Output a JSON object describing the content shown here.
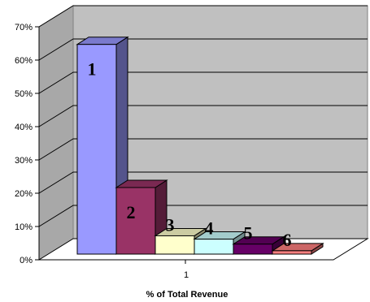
{
  "chart_data": {
    "type": "bar",
    "categories": [
      "1"
    ],
    "series": [
      {
        "label": "1",
        "values": [
          63
        ],
        "color": "#9999ff"
      },
      {
        "label": "2",
        "values": [
          20
        ],
        "color": "#993366"
      },
      {
        "label": "3",
        "values": [
          5.5
        ],
        "color": "#ffffcc"
      },
      {
        "label": "4",
        "values": [
          4.5
        ],
        "color": "#ccffff"
      },
      {
        "label": "5",
        "values": [
          3
        ],
        "color": "#660066"
      },
      {
        "label": "6",
        "values": [
          1
        ],
        "color": "#ff8080"
      }
    ],
    "title": "",
    "xlabel": "% of Total Revenue",
    "ylabel": "",
    "ylim": [
      0,
      70
    ],
    "yticks": [
      "0%",
      "10%",
      "20%",
      "30%",
      "40%",
      "50%",
      "60%",
      "70%"
    ],
    "grid": true,
    "legend": "none",
    "style": "3d-column",
    "wall_color": "#c0c0c0"
  }
}
